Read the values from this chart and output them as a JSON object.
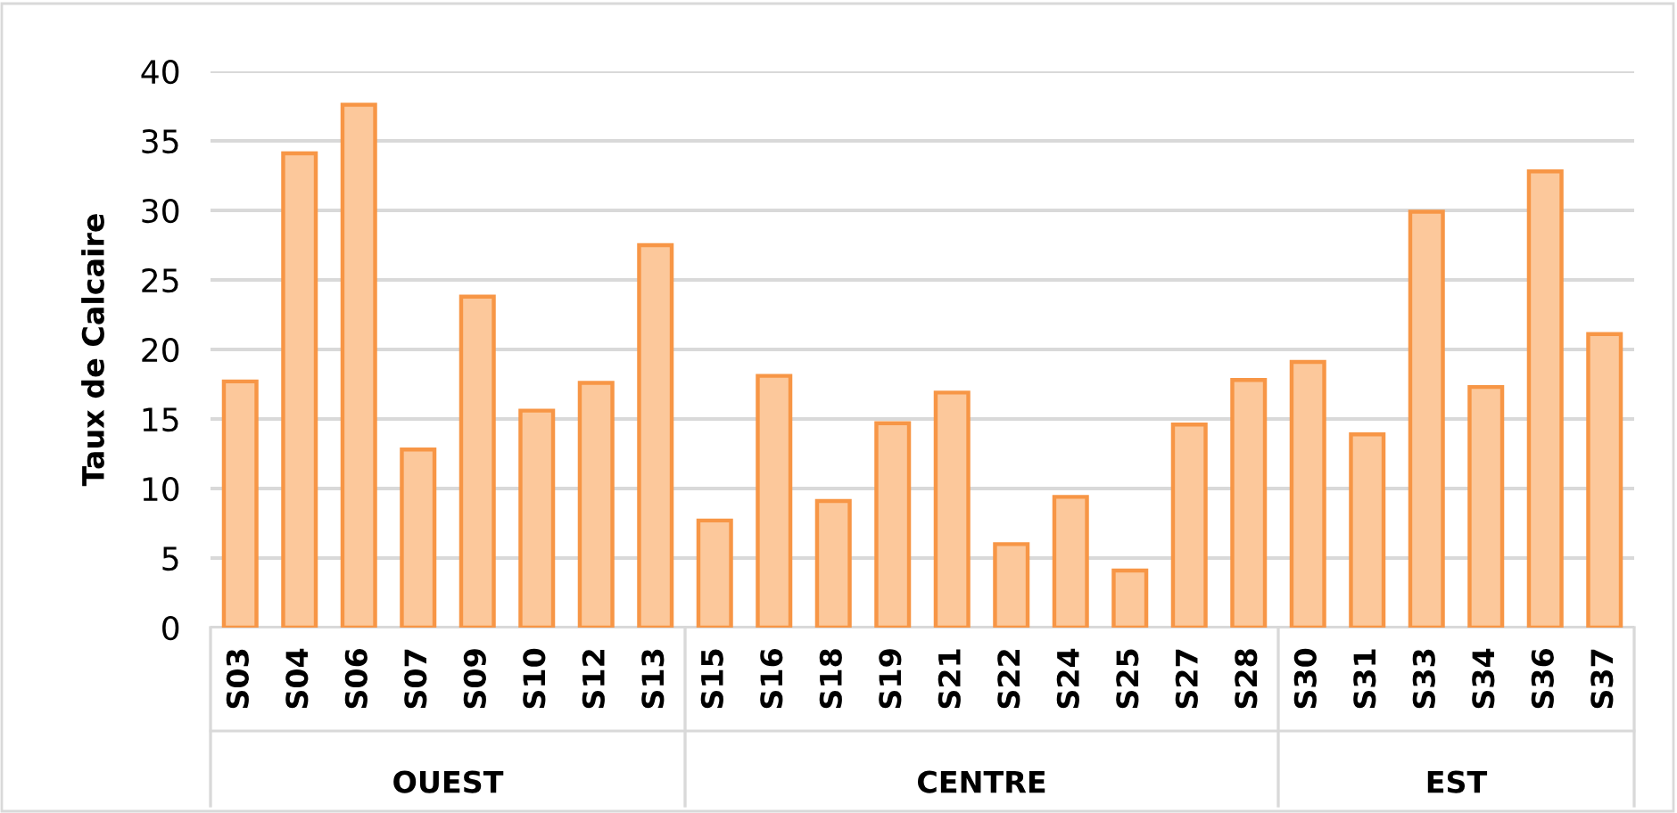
{
  "chart_data": {
    "type": "bar",
    "ylabel": "Taux de Calcaire",
    "categories": [
      "S03",
      "S04",
      "S06",
      "S07",
      "S09",
      "S10",
      "S12",
      "S13",
      "S15",
      "S16",
      "S18",
      "S19",
      "S21",
      "S22",
      "S24",
      "S25",
      "S27",
      "S28",
      "S30",
      "S31",
      "S33",
      "S34",
      "S36",
      "S37"
    ],
    "values": [
      17.7,
      34.1,
      37.6,
      12.8,
      23.8,
      15.6,
      17.6,
      27.5,
      7.7,
      18.1,
      9.1,
      14.7,
      16.9,
      6.0,
      9.4,
      4.1,
      14.6,
      17.8,
      19.1,
      13.9,
      29.9,
      17.3,
      32.8,
      21.1
    ],
    "color": "#fcc89b",
    "ylim": [
      0,
      40
    ],
    "yticks": [
      0,
      5,
      10,
      15,
      20,
      25,
      30,
      35,
      40
    ],
    "grid": "y",
    "annotations": [
      "OUEST",
      "CENTRE",
      "EST"
    ]
  }
}
